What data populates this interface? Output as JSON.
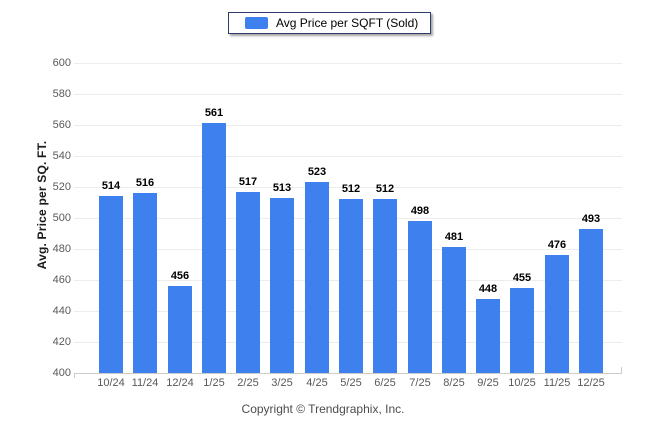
{
  "legend": {
    "label": "Avg Price per SQFT (Sold)",
    "swatch_color": "#3e80ee"
  },
  "footer": {
    "copyright": "Copyright © Trendgraphix, Inc."
  },
  "colors": {
    "bar": "#3e80ee",
    "grid": "#ededed",
    "axis": "#cccccc",
    "tick_text": "#595959",
    "value_text": "#000000"
  },
  "chart_data": {
    "type": "bar",
    "title": "",
    "categories": [
      "10/24",
      "11/24",
      "12/24",
      "1/25",
      "2/25",
      "3/25",
      "4/25",
      "5/25",
      "6/25",
      "7/25",
      "8/25",
      "9/25",
      "10/25",
      "11/25",
      "12/25"
    ],
    "series": [
      {
        "name": "Avg Price per SQFT (Sold)",
        "values": [
          514,
          516,
          456,
          561,
          517,
          513,
          523,
          512,
          512,
          498,
          481,
          448,
          455,
          476,
          493
        ]
      }
    ],
    "xlabel": "",
    "ylabel": "Avg. Price per SQ. FT.",
    "ylim": [
      400,
      600
    ],
    "ytick_step": 20,
    "grid": true,
    "legend_position": "top",
    "data_labels": true
  }
}
